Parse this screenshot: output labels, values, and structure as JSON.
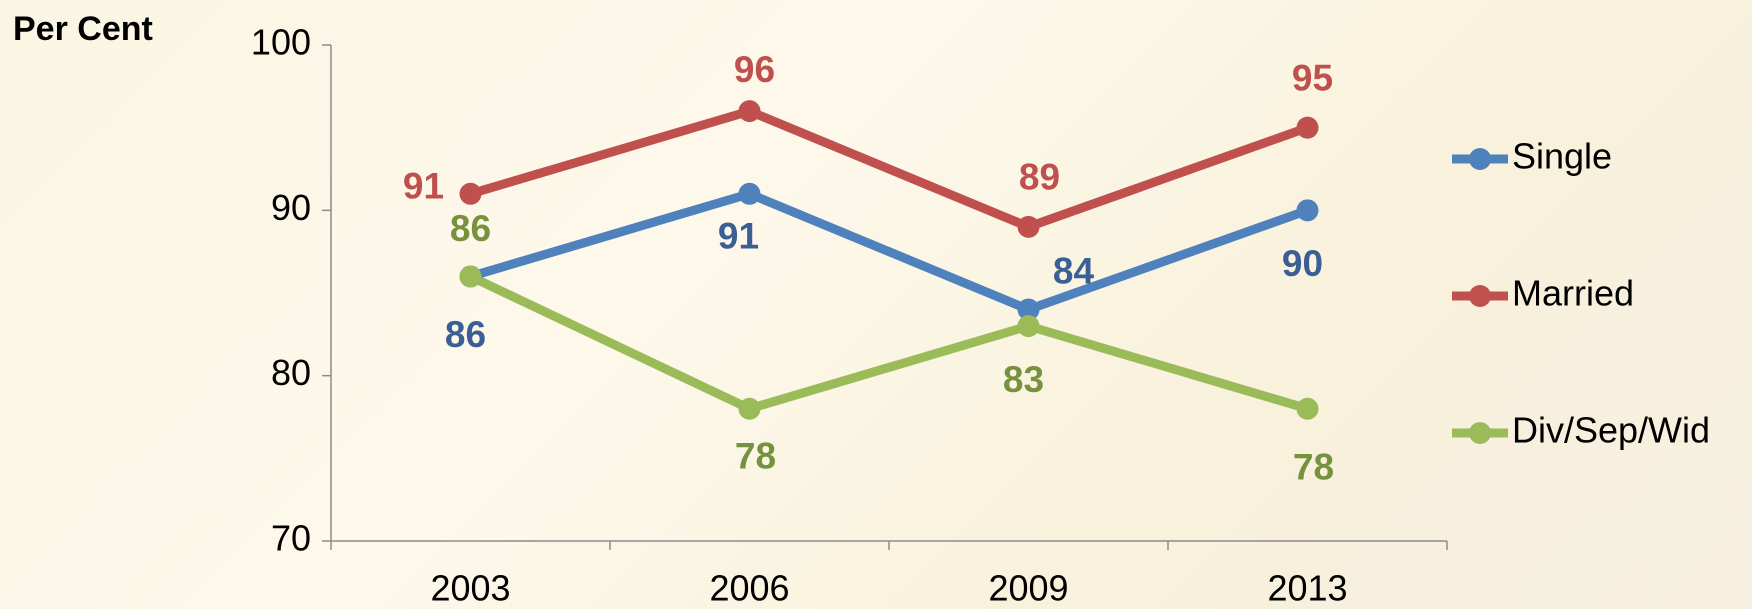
{
  "chart_data": {
    "type": "line",
    "y_label": "Per Cent",
    "categories": [
      "2003",
      "2006",
      "2009",
      "2013"
    ],
    "series": [
      {
        "name": "Single",
        "color": "#4f81bd",
        "label_color": "#3a5f94",
        "values": [
          86,
          91,
          84,
          90
        ]
      },
      {
        "name": "Married",
        "color": "#c0504d",
        "label_color": "#c0504d",
        "values": [
          91,
          96,
          89,
          95
        ]
      },
      {
        "name": "Div/Sep/Wid",
        "color": "#9bbb59",
        "label_color": "#76923c",
        "values": [
          86,
          78,
          83,
          78
        ]
      }
    ],
    "ylim": [
      70,
      100
    ],
    "yticks": [
      70,
      80,
      90,
      100
    ],
    "grid": false,
    "legend": "right"
  }
}
